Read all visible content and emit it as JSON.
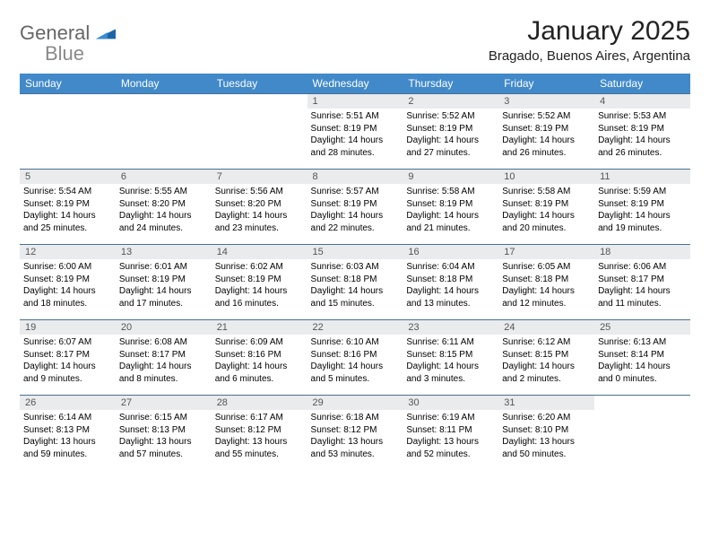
{
  "brand": {
    "word1": "General",
    "word2": "Blue",
    "tri_color": "#1c66a8",
    "text_color_1": "#666666",
    "text_color_2": "#8a8a8a"
  },
  "title": "January 2025",
  "location": "Bragado, Buenos Aires, Argentina",
  "header_bg": "#4189c9",
  "daynum_bg": "#e9ebed",
  "border_color": "#4a6f93",
  "days_of_week": [
    "Sunday",
    "Monday",
    "Tuesday",
    "Wednesday",
    "Thursday",
    "Friday",
    "Saturday"
  ],
  "weeks": [
    [
      {
        "n": "",
        "sr": "",
        "ss": "",
        "dl": ""
      },
      {
        "n": "",
        "sr": "",
        "ss": "",
        "dl": ""
      },
      {
        "n": "",
        "sr": "",
        "ss": "",
        "dl": ""
      },
      {
        "n": "1",
        "sr": "Sunrise: 5:51 AM",
        "ss": "Sunset: 8:19 PM",
        "dl": "Daylight: 14 hours and 28 minutes."
      },
      {
        "n": "2",
        "sr": "Sunrise: 5:52 AM",
        "ss": "Sunset: 8:19 PM",
        "dl": "Daylight: 14 hours and 27 minutes."
      },
      {
        "n": "3",
        "sr": "Sunrise: 5:52 AM",
        "ss": "Sunset: 8:19 PM",
        "dl": "Daylight: 14 hours and 26 minutes."
      },
      {
        "n": "4",
        "sr": "Sunrise: 5:53 AM",
        "ss": "Sunset: 8:19 PM",
        "dl": "Daylight: 14 hours and 26 minutes."
      }
    ],
    [
      {
        "n": "5",
        "sr": "Sunrise: 5:54 AM",
        "ss": "Sunset: 8:19 PM",
        "dl": "Daylight: 14 hours and 25 minutes."
      },
      {
        "n": "6",
        "sr": "Sunrise: 5:55 AM",
        "ss": "Sunset: 8:20 PM",
        "dl": "Daylight: 14 hours and 24 minutes."
      },
      {
        "n": "7",
        "sr": "Sunrise: 5:56 AM",
        "ss": "Sunset: 8:20 PM",
        "dl": "Daylight: 14 hours and 23 minutes."
      },
      {
        "n": "8",
        "sr": "Sunrise: 5:57 AM",
        "ss": "Sunset: 8:19 PM",
        "dl": "Daylight: 14 hours and 22 minutes."
      },
      {
        "n": "9",
        "sr": "Sunrise: 5:58 AM",
        "ss": "Sunset: 8:19 PM",
        "dl": "Daylight: 14 hours and 21 minutes."
      },
      {
        "n": "10",
        "sr": "Sunrise: 5:58 AM",
        "ss": "Sunset: 8:19 PM",
        "dl": "Daylight: 14 hours and 20 minutes."
      },
      {
        "n": "11",
        "sr": "Sunrise: 5:59 AM",
        "ss": "Sunset: 8:19 PM",
        "dl": "Daylight: 14 hours and 19 minutes."
      }
    ],
    [
      {
        "n": "12",
        "sr": "Sunrise: 6:00 AM",
        "ss": "Sunset: 8:19 PM",
        "dl": "Daylight: 14 hours and 18 minutes."
      },
      {
        "n": "13",
        "sr": "Sunrise: 6:01 AM",
        "ss": "Sunset: 8:19 PM",
        "dl": "Daylight: 14 hours and 17 minutes."
      },
      {
        "n": "14",
        "sr": "Sunrise: 6:02 AM",
        "ss": "Sunset: 8:19 PM",
        "dl": "Daylight: 14 hours and 16 minutes."
      },
      {
        "n": "15",
        "sr": "Sunrise: 6:03 AM",
        "ss": "Sunset: 8:18 PM",
        "dl": "Daylight: 14 hours and 15 minutes."
      },
      {
        "n": "16",
        "sr": "Sunrise: 6:04 AM",
        "ss": "Sunset: 8:18 PM",
        "dl": "Daylight: 14 hours and 13 minutes."
      },
      {
        "n": "17",
        "sr": "Sunrise: 6:05 AM",
        "ss": "Sunset: 8:18 PM",
        "dl": "Daylight: 14 hours and 12 minutes."
      },
      {
        "n": "18",
        "sr": "Sunrise: 6:06 AM",
        "ss": "Sunset: 8:17 PM",
        "dl": "Daylight: 14 hours and 11 minutes."
      }
    ],
    [
      {
        "n": "19",
        "sr": "Sunrise: 6:07 AM",
        "ss": "Sunset: 8:17 PM",
        "dl": "Daylight: 14 hours and 9 minutes."
      },
      {
        "n": "20",
        "sr": "Sunrise: 6:08 AM",
        "ss": "Sunset: 8:17 PM",
        "dl": "Daylight: 14 hours and 8 minutes."
      },
      {
        "n": "21",
        "sr": "Sunrise: 6:09 AM",
        "ss": "Sunset: 8:16 PM",
        "dl": "Daylight: 14 hours and 6 minutes."
      },
      {
        "n": "22",
        "sr": "Sunrise: 6:10 AM",
        "ss": "Sunset: 8:16 PM",
        "dl": "Daylight: 14 hours and 5 minutes."
      },
      {
        "n": "23",
        "sr": "Sunrise: 6:11 AM",
        "ss": "Sunset: 8:15 PM",
        "dl": "Daylight: 14 hours and 3 minutes."
      },
      {
        "n": "24",
        "sr": "Sunrise: 6:12 AM",
        "ss": "Sunset: 8:15 PM",
        "dl": "Daylight: 14 hours and 2 minutes."
      },
      {
        "n": "25",
        "sr": "Sunrise: 6:13 AM",
        "ss": "Sunset: 8:14 PM",
        "dl": "Daylight: 14 hours and 0 minutes."
      }
    ],
    [
      {
        "n": "26",
        "sr": "Sunrise: 6:14 AM",
        "ss": "Sunset: 8:13 PM",
        "dl": "Daylight: 13 hours and 59 minutes."
      },
      {
        "n": "27",
        "sr": "Sunrise: 6:15 AM",
        "ss": "Sunset: 8:13 PM",
        "dl": "Daylight: 13 hours and 57 minutes."
      },
      {
        "n": "28",
        "sr": "Sunrise: 6:17 AM",
        "ss": "Sunset: 8:12 PM",
        "dl": "Daylight: 13 hours and 55 minutes."
      },
      {
        "n": "29",
        "sr": "Sunrise: 6:18 AM",
        "ss": "Sunset: 8:12 PM",
        "dl": "Daylight: 13 hours and 53 minutes."
      },
      {
        "n": "30",
        "sr": "Sunrise: 6:19 AM",
        "ss": "Sunset: 8:11 PM",
        "dl": "Daylight: 13 hours and 52 minutes."
      },
      {
        "n": "31",
        "sr": "Sunrise: 6:20 AM",
        "ss": "Sunset: 8:10 PM",
        "dl": "Daylight: 13 hours and 50 minutes."
      },
      {
        "n": "",
        "sr": "",
        "ss": "",
        "dl": ""
      }
    ]
  ]
}
